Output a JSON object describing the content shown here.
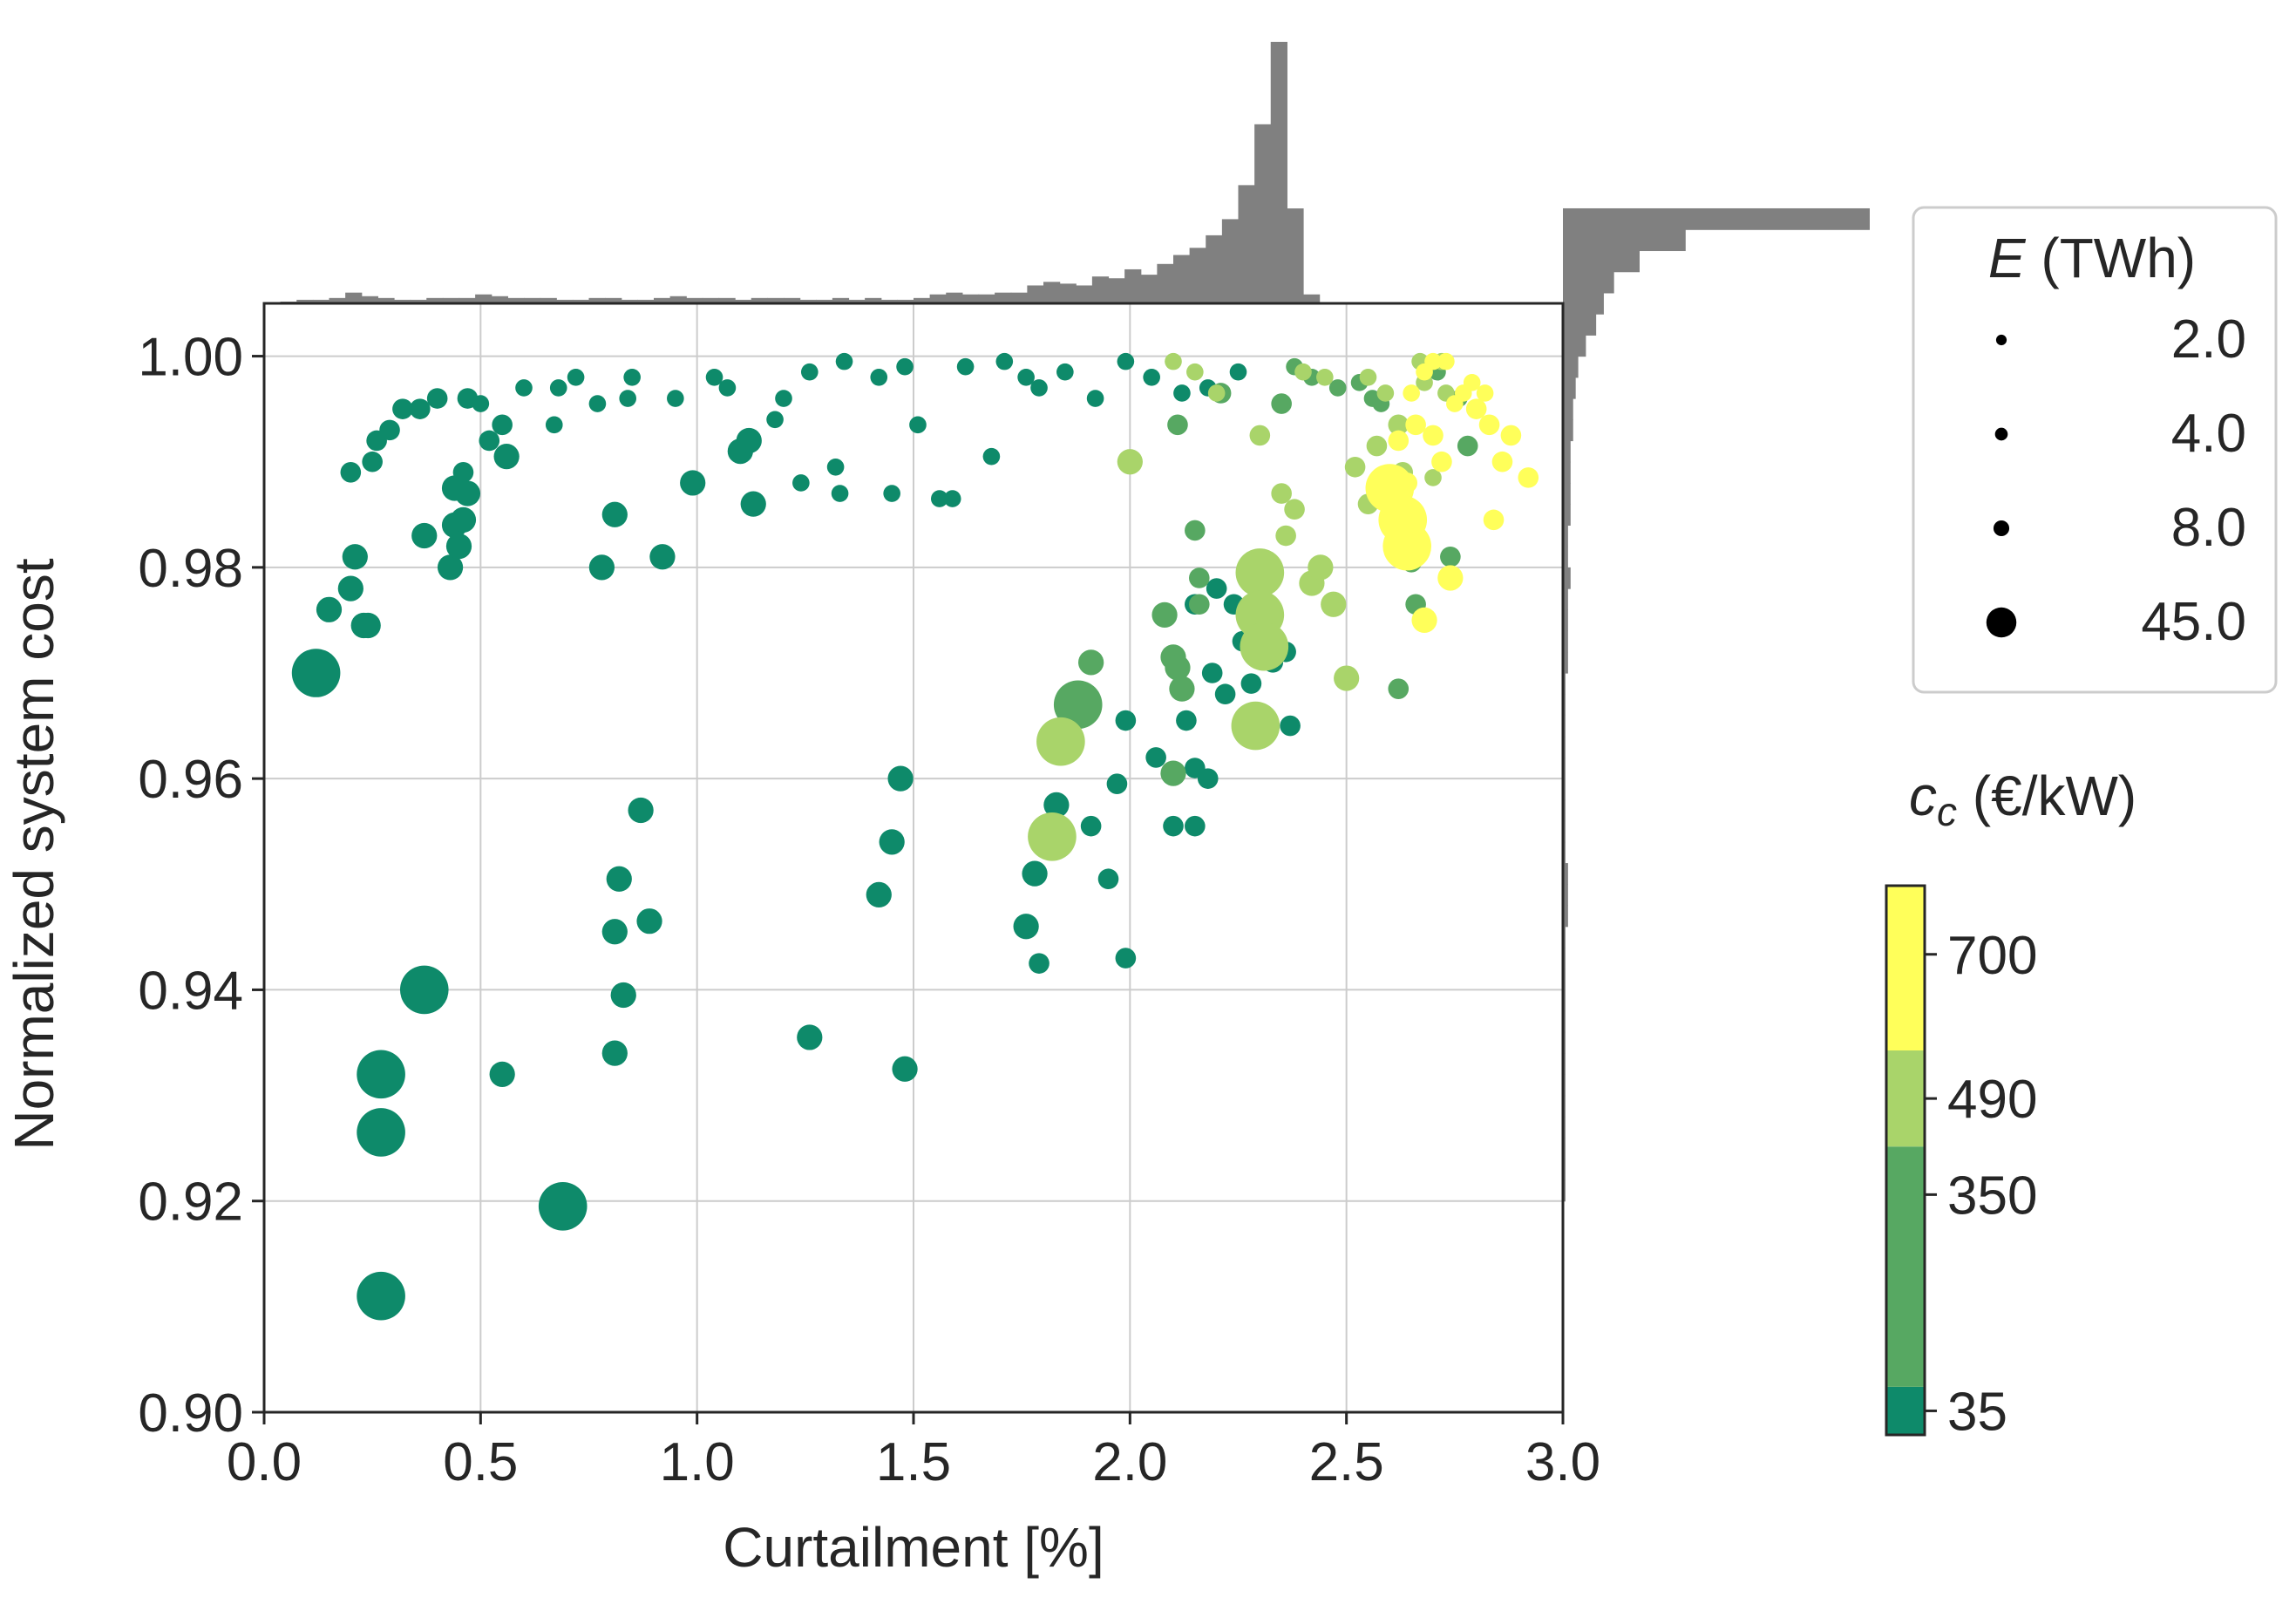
{
  "chart_data": {
    "type": "scatter",
    "xlabel": "Curtailment [%]",
    "ylabel": "Normalized system cost",
    "xlim": [
      0.0,
      3.0
    ],
    "ylim": [
      0.9,
      1.005
    ],
    "xticks": [
      "0.0",
      "0.5",
      "1.0",
      "1.5",
      "2.0",
      "2.5",
      "3.0"
    ],
    "yticks": [
      "0.90",
      "0.92",
      "0.94",
      "0.96",
      "0.98",
      "1.00"
    ],
    "grid": true,
    "legend_size": {
      "title_var": "E",
      "title_unit": " (TWh)",
      "placement": "right",
      "entries": [
        {
          "label": "2.0",
          "value": 2.0
        },
        {
          "label": "4.0",
          "value": 4.0
        },
        {
          "label": "8.0",
          "value": 8.0
        },
        {
          "label": "45.0",
          "value": 45.0
        }
      ]
    },
    "colorbar": {
      "title_var": "c",
      "title_sub": "c",
      "title_unit": " (€/kW)",
      "range": [
        0,
        800
      ],
      "ticks": [
        {
          "label": "35",
          "value": 35
        },
        {
          "label": "350",
          "value": 350
        },
        {
          "label": "490",
          "value": 490
        },
        {
          "label": "700",
          "value": 700
        }
      ],
      "bands": [
        {
          "from": 0,
          "to": 70,
          "color": "#0e8a6a"
        },
        {
          "from": 70,
          "to": 420,
          "color": "#57a862"
        },
        {
          "from": 420,
          "to": 560,
          "color": "#a9d46a"
        },
        {
          "from": 560,
          "to": 800,
          "color": "#ffff5a"
        }
      ]
    },
    "palette": {
      "c35": "#0e8a6a",
      "c350": "#57a862",
      "c490": "#a9d46a",
      "c700": "#ffff5a",
      "histogram": "#808080",
      "grid": "#cccccc",
      "axis": "#262626"
    },
    "top_histogram": {
      "bin_width": 0.0375,
      "counts": [
        0,
        1,
        2,
        2,
        3,
        6,
        4,
        3,
        2,
        2,
        3,
        3,
        3,
        5,
        4,
        3,
        3,
        3,
        2,
        2,
        3,
        3,
        2,
        2,
        3,
        4,
        3,
        3,
        3,
        2,
        3,
        3,
        3,
        2,
        2,
        3,
        2,
        3,
        2,
        2,
        3,
        5,
        6,
        5,
        5,
        6,
        6,
        10,
        12,
        11,
        10,
        15,
        14,
        19,
        16,
        22,
        27,
        31,
        38,
        47,
        66,
        100,
        146,
        53,
        5,
        0,
        0,
        0,
        0,
        0,
        0,
        0,
        0,
        0,
        0,
        0,
        0,
        0,
        0,
        0
      ]
    },
    "right_histogram": {
      "bin_width": 0.002,
      "counts": [
        0,
        0,
        0,
        0,
        0,
        0,
        0,
        0,
        0,
        0,
        1,
        1,
        1,
        1,
        1,
        1,
        1,
        1,
        1,
        1,
        1,
        1,
        1,
        2,
        2,
        2,
        1,
        1,
        1,
        1,
        1,
        1,
        1,
        1,
        1,
        2,
        2,
        2,
        2,
        3,
        2,
        2,
        3,
        3,
        3,
        3,
        4,
        4,
        5,
        6,
        9,
        13,
        16,
        20,
        30,
        48,
        120
      ]
    },
    "series": [
      {
        "name": "35",
        "color_key": "c35",
        "points": [
          [
            0.12,
            0.97,
            45
          ],
          [
            0.15,
            0.976,
            8
          ],
          [
            0.2,
            0.978,
            8
          ],
          [
            0.21,
            0.981,
            8
          ],
          [
            0.23,
            0.9745,
            8
          ],
          [
            0.24,
            0.9745,
            8
          ],
          [
            0.2,
            0.989,
            4
          ],
          [
            0.25,
            0.99,
            4
          ],
          [
            0.26,
            0.992,
            4
          ],
          [
            0.29,
            0.993,
            4
          ],
          [
            0.32,
            0.995,
            4
          ],
          [
            0.36,
            0.995,
            4
          ],
          [
            0.4,
            0.996,
            4
          ],
          [
            0.37,
            0.983,
            8
          ],
          [
            0.43,
            0.98,
            8
          ],
          [
            0.44,
            0.984,
            8
          ],
          [
            0.46,
            0.9845,
            8
          ],
          [
            0.45,
            0.982,
            8
          ],
          [
            0.44,
            0.9875,
            8
          ],
          [
            0.46,
            0.989,
            4
          ],
          [
            0.47,
            0.987,
            8
          ],
          [
            0.52,
            0.992,
            4
          ],
          [
            0.56,
            0.9905,
            8
          ],
          [
            0.55,
            0.9935,
            4
          ],
          [
            0.47,
            0.996,
            4
          ],
          [
            0.5,
            0.9955,
            2
          ],
          [
            0.6,
            0.997,
            2
          ],
          [
            0.68,
            0.997,
            2
          ],
          [
            0.72,
            0.998,
            2
          ],
          [
            0.77,
            0.9955,
            2
          ],
          [
            0.67,
            0.9935,
            2
          ],
          [
            0.78,
            0.98,
            8
          ],
          [
            0.81,
            0.985,
            8
          ],
          [
            0.84,
            0.996,
            2
          ],
          [
            0.85,
            0.998,
            2
          ],
          [
            0.92,
            0.981,
            8
          ],
          [
            0.95,
            0.996,
            2
          ],
          [
            0.99,
            0.988,
            8
          ],
          [
            1.04,
            0.998,
            2
          ],
          [
            1.07,
            0.997,
            2
          ],
          [
            1.1,
            0.991,
            8
          ],
          [
            1.12,
            0.992,
            8
          ],
          [
            1.13,
            0.986,
            8
          ],
          [
            1.18,
            0.994,
            2
          ],
          [
            1.2,
            0.996,
            2
          ],
          [
            1.24,
            0.988,
            2
          ],
          [
            1.26,
            0.9985,
            2
          ],
          [
            1.32,
            0.9895,
            2
          ],
          [
            1.33,
            0.987,
            2
          ],
          [
            1.34,
            0.9995,
            2
          ],
          [
            1.42,
            0.998,
            2
          ],
          [
            1.45,
            0.987,
            2
          ],
          [
            1.48,
            0.999,
            2
          ],
          [
            1.51,
            0.9935,
            2
          ],
          [
            1.56,
            0.9865,
            2
          ],
          [
            1.59,
            0.9865,
            2
          ],
          [
            1.62,
            0.999,
            2
          ],
          [
            1.68,
            0.9905,
            2
          ],
          [
            1.71,
            0.9995,
            2
          ],
          [
            1.76,
            0.998,
            2
          ],
          [
            1.79,
            0.997,
            2
          ],
          [
            1.85,
            0.9985,
            2
          ],
          [
            1.92,
            0.996,
            2
          ],
          [
            1.99,
            0.9995,
            2
          ],
          [
            2.05,
            0.998,
            2
          ],
          [
            2.12,
            0.9965,
            2
          ],
          [
            2.18,
            0.997,
            2
          ],
          [
            2.25,
            0.9985,
            2
          ],
          [
            0.27,
            0.932,
            45
          ],
          [
            0.27,
            0.9265,
            45
          ],
          [
            0.27,
            0.911,
            45
          ],
          [
            0.37,
            0.94,
            45
          ],
          [
            0.55,
            0.932,
            8
          ],
          [
            0.69,
            0.9195,
            45
          ],
          [
            0.81,
            0.934,
            8
          ],
          [
            0.81,
            0.9455,
            8
          ],
          [
            0.82,
            0.9505,
            8
          ],
          [
            0.83,
            0.9395,
            8
          ],
          [
            0.87,
            0.957,
            8
          ],
          [
            0.89,
            0.9465,
            8
          ],
          [
            1.26,
            0.9355,
            8
          ],
          [
            1.42,
            0.949,
            8
          ],
          [
            1.45,
            0.954,
            8
          ],
          [
            1.47,
            0.96,
            8
          ],
          [
            1.48,
            0.9325,
            8
          ],
          [
            1.76,
            0.946,
            8
          ],
          [
            1.78,
            0.951,
            8
          ],
          [
            1.79,
            0.9425,
            4
          ],
          [
            1.83,
            0.9575,
            8
          ],
          [
            1.91,
            0.9555,
            4
          ],
          [
            1.95,
            0.9505,
            4
          ],
          [
            1.97,
            0.9595,
            4
          ],
          [
            1.99,
            0.943,
            4
          ],
          [
            1.99,
            0.9655,
            4
          ],
          [
            2.06,
            0.962,
            4
          ],
          [
            2.1,
            0.9555,
            4
          ],
          [
            2.15,
            0.9555,
            4
          ],
          [
            2.15,
            0.961,
            4
          ],
          [
            2.18,
            0.96,
            4
          ],
          [
            2.13,
            0.9655,
            4
          ],
          [
            2.19,
            0.97,
            4
          ],
          [
            2.22,
            0.968,
            4
          ],
          [
            2.26,
            0.973,
            4
          ],
          [
            2.28,
            0.969,
            4
          ],
          [
            2.3,
            0.974,
            4
          ],
          [
            2.33,
            0.971,
            4
          ],
          [
            2.36,
            0.972,
            4
          ],
          [
            2.37,
            0.965,
            4
          ],
          [
            2.2,
            0.978,
            4
          ],
          [
            2.24,
            0.9765,
            4
          ],
          [
            2.15,
            0.9765,
            4
          ]
        ]
      },
      {
        "name": "350",
        "color_key": "c350",
        "points": [
          [
            1.88,
            0.967,
            45
          ],
          [
            1.91,
            0.971,
            8
          ],
          [
            2.08,
            0.9755,
            8
          ],
          [
            2.1,
            0.9715,
            8
          ],
          [
            2.11,
            0.9705,
            8
          ],
          [
            2.12,
            0.9685,
            8
          ],
          [
            2.1,
            0.9605,
            8
          ],
          [
            2.11,
            0.9935,
            4
          ],
          [
            2.15,
            0.9835,
            4
          ],
          [
            2.16,
            0.979,
            4
          ],
          [
            2.16,
            0.9765,
            4
          ],
          [
            2.21,
            0.9965,
            4
          ],
          [
            2.35,
            0.9955,
            4
          ],
          [
            2.38,
            0.999,
            2
          ],
          [
            2.42,
            0.998,
            2
          ],
          [
            2.48,
            0.997,
            2
          ],
          [
            2.53,
            0.9975,
            2
          ],
          [
            2.56,
            0.996,
            2
          ],
          [
            2.6,
            0.9845,
            4
          ],
          [
            2.64,
            0.9815,
            4
          ],
          [
            2.62,
            0.9685,
            4
          ],
          [
            2.65,
            0.9805,
            4
          ],
          [
            2.66,
            0.9765,
            4
          ],
          [
            2.71,
            0.9985,
            2
          ],
          [
            2.74,
            0.981,
            4
          ],
          [
            2.76,
            0.996,
            2
          ],
          [
            2.78,
            0.9915,
            4
          ],
          [
            2.58,
            0.9955,
            2
          ]
        ]
      },
      {
        "name": "490",
        "color_key": "c490",
        "points": [
          [
            1.82,
            0.9545,
            45
          ],
          [
            1.84,
            0.9635,
            45
          ],
          [
            2.0,
            0.99,
            8
          ],
          [
            2.1,
            0.9995,
            2
          ],
          [
            2.15,
            0.9985,
            2
          ],
          [
            2.2,
            0.9965,
            2
          ],
          [
            2.3,
            0.9795,
            45
          ],
          [
            2.3,
            0.9755,
            45
          ],
          [
            2.31,
            0.9725,
            45
          ],
          [
            2.29,
            0.965,
            45
          ],
          [
            2.3,
            0.9925,
            4
          ],
          [
            2.35,
            0.987,
            4
          ],
          [
            2.36,
            0.983,
            4
          ],
          [
            2.38,
            0.9855,
            4
          ],
          [
            2.42,
            0.9785,
            8
          ],
          [
            2.44,
            0.98,
            8
          ],
          [
            2.47,
            0.9765,
            8
          ],
          [
            2.5,
            0.9695,
            8
          ],
          [
            2.52,
            0.9895,
            4
          ],
          [
            2.55,
            0.986,
            4
          ],
          [
            2.57,
            0.9915,
            4
          ],
          [
            2.58,
            0.9875,
            4
          ],
          [
            2.59,
            0.9965,
            2
          ],
          [
            2.62,
            0.9935,
            4
          ],
          [
            2.63,
            0.989,
            4
          ],
          [
            2.67,
            0.9995,
            2
          ],
          [
            2.68,
            0.9975,
            2
          ],
          [
            2.7,
            0.9885,
            2
          ],
          [
            2.72,
            0.9995,
            2
          ],
          [
            2.73,
            0.9965,
            2
          ],
          [
            2.55,
            0.998,
            2
          ],
          [
            2.45,
            0.998,
            2
          ],
          [
            2.4,
            0.9985,
            2
          ]
        ]
      },
      {
        "name": "700",
        "color_key": "c700",
        "points": [
          [
            2.6,
            0.9875,
            45
          ],
          [
            2.63,
            0.9845,
            45
          ],
          [
            2.64,
            0.982,
            45
          ],
          [
            2.68,
            0.975,
            8
          ],
          [
            2.74,
            0.979,
            8
          ],
          [
            2.84,
            0.9845,
            4
          ],
          [
            2.86,
            0.99,
            4
          ],
          [
            2.92,
            0.9885,
            4
          ],
          [
            2.88,
            0.9925,
            4
          ],
          [
            2.8,
            0.995,
            4
          ],
          [
            2.83,
            0.9935,
            4
          ],
          [
            2.75,
            0.9955,
            2
          ],
          [
            2.77,
            0.9965,
            2
          ],
          [
            2.79,
            0.9975,
            2
          ],
          [
            2.82,
            0.9965,
            2
          ],
          [
            2.7,
            0.9995,
            2
          ],
          [
            2.73,
            0.9995,
            2
          ],
          [
            2.68,
            0.9985,
            2
          ],
          [
            2.65,
            0.9965,
            2
          ],
          [
            2.66,
            0.9935,
            4
          ],
          [
            2.7,
            0.9925,
            4
          ],
          [
            2.72,
            0.99,
            4
          ],
          [
            2.62,
            0.992,
            4
          ],
          [
            2.64,
            0.988,
            4
          ]
        ]
      }
    ]
  }
}
